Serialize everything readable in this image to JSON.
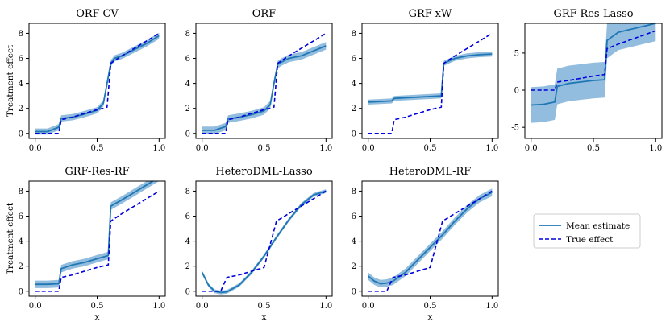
{
  "figure": {
    "legend": {
      "mean_label": "Mean estimate",
      "true_label": "True effect",
      "placement": "right, below top-right panel"
    },
    "colors": {
      "mean": "#1f77b4",
      "band": "#7fb1d8",
      "true": "#0000dd",
      "frame": "#000000"
    }
  },
  "chart_data": [
    {
      "type": "line",
      "title": "ORF-CV",
      "xlabel": "",
      "ylabel": "Treatment effect",
      "xlim": [
        -0.05,
        1.05
      ],
      "ylim": [
        -0.4,
        8.8
      ],
      "xticks": [
        0,
        0.5,
        1
      ],
      "xtick_labels": [
        "0.0",
        "0.5",
        "1.0"
      ],
      "yticks": [
        0,
        2,
        4,
        6,
        8
      ],
      "x": [
        0,
        0.1,
        0.19,
        0.21,
        0.3,
        0.4,
        0.5,
        0.55,
        0.58,
        0.61,
        0.64,
        0.7,
        0.8,
        0.9,
        1.0
      ],
      "series": [
        {
          "name": "Mean estimate",
          "values": [
            0.15,
            0.15,
            0.5,
            1.2,
            1.3,
            1.55,
            1.85,
            2.4,
            4.0,
            5.6,
            6.0,
            6.2,
            6.7,
            7.2,
            7.8
          ],
          "band": 0.25
        },
        {
          "name": "True effect",
          "values": [
            0,
            0,
            0,
            1.1,
            1.3,
            1.6,
            1.9,
            2.0,
            2.1,
            5.6,
            5.8,
            6.2,
            6.8,
            7.4,
            8.0
          ]
        }
      ]
    },
    {
      "type": "line",
      "title": "ORF",
      "xlabel": "",
      "ylabel": "",
      "xlim": [
        -0.05,
        1.05
      ],
      "ylim": [
        -0.4,
        8.8
      ],
      "xticks": [
        0,
        0.5,
        1
      ],
      "xtick_labels": [
        "0.0",
        "0.5",
        "1.0"
      ],
      "yticks": [
        0,
        2,
        4,
        6,
        8
      ],
      "x": [
        0,
        0.1,
        0.19,
        0.21,
        0.3,
        0.4,
        0.5,
        0.55,
        0.58,
        0.61,
        0.64,
        0.7,
        0.8,
        0.9,
        1.0
      ],
      "series": [
        {
          "name": "Mean estimate",
          "values": [
            0.25,
            0.25,
            0.55,
            1.15,
            1.3,
            1.5,
            1.8,
            2.3,
            4.0,
            5.5,
            5.7,
            6.0,
            6.2,
            6.6,
            7.0
          ],
          "band": 0.3
        },
        {
          "name": "True effect",
          "values": [
            0,
            0,
            0,
            1.1,
            1.3,
            1.6,
            1.9,
            2.0,
            2.1,
            5.6,
            5.8,
            6.2,
            6.8,
            7.4,
            8.0
          ]
        }
      ]
    },
    {
      "type": "line",
      "title": "GRF-xW",
      "xlabel": "",
      "ylabel": "",
      "xlim": [
        -0.05,
        1.05
      ],
      "ylim": [
        -0.4,
        8.8
      ],
      "xticks": [
        0,
        0.5,
        1
      ],
      "xtick_labels": [
        "0.0",
        "0.5",
        "1.0"
      ],
      "yticks": [
        0,
        2,
        4,
        6,
        8
      ],
      "x": [
        0,
        0.1,
        0.19,
        0.21,
        0.3,
        0.4,
        0.5,
        0.59,
        0.61,
        0.7,
        0.8,
        0.9,
        1.0
      ],
      "series": [
        {
          "name": "Mean estimate",
          "values": [
            2.5,
            2.55,
            2.6,
            2.8,
            2.85,
            2.9,
            2.95,
            3.0,
            5.6,
            6.0,
            6.2,
            6.3,
            6.35
          ],
          "band": 0.2
        },
        {
          "name": "True effect",
          "values": [
            0,
            0,
            0,
            1.1,
            1.3,
            1.6,
            1.9,
            2.1,
            5.6,
            6.2,
            6.8,
            7.4,
            8.0
          ]
        }
      ]
    },
    {
      "type": "line",
      "title": "GRF-Res-Lasso",
      "xlabel": "",
      "ylabel": "",
      "xlim": [
        -0.05,
        1.05
      ],
      "ylim": [
        -6.5,
        9.0
      ],
      "xticks": [
        0,
        0.5,
        1
      ],
      "xtick_labels": [
        "0.0",
        "0.5",
        "1.0"
      ],
      "yticks": [
        -5,
        0,
        5
      ],
      "x": [
        0,
        0.1,
        0.19,
        0.21,
        0.3,
        0.4,
        0.5,
        0.59,
        0.61,
        0.7,
        0.8,
        0.9,
        1.0
      ],
      "series": [
        {
          "name": "Mean estimate",
          "values": [
            -2.0,
            -1.9,
            -1.6,
            0.5,
            0.9,
            1.1,
            1.3,
            1.4,
            6.7,
            7.8,
            8.2,
            8.6,
            9.0
          ],
          "band": 2.4
        },
        {
          "name": "True effect",
          "values": [
            0,
            0,
            0,
            1.1,
            1.3,
            1.6,
            1.9,
            2.1,
            5.6,
            6.2,
            6.8,
            7.4,
            8.0
          ]
        }
      ]
    },
    {
      "type": "line",
      "title": "GRF-Res-RF",
      "xlabel": "x",
      "ylabel": "Treatment effect",
      "xlim": [
        -0.05,
        1.05
      ],
      "ylim": [
        -0.4,
        8.8
      ],
      "xticks": [
        0,
        0.5,
        1
      ],
      "xtick_labels": [
        "0.0",
        "0.5",
        "1.0"
      ],
      "yticks": [
        0,
        2,
        4,
        6,
        8
      ],
      "x": [
        0,
        0.1,
        0.19,
        0.21,
        0.3,
        0.4,
        0.5,
        0.59,
        0.61,
        0.7,
        0.8,
        0.9,
        1.0
      ],
      "series": [
        {
          "name": "Mean estimate",
          "values": [
            0.55,
            0.55,
            0.6,
            1.8,
            2.1,
            2.3,
            2.6,
            2.85,
            6.8,
            7.3,
            7.9,
            8.5,
            9.1
          ],
          "band": 0.3
        },
        {
          "name": "True effect",
          "values": [
            0,
            0,
            0,
            1.1,
            1.3,
            1.6,
            1.9,
            2.1,
            5.6,
            6.2,
            6.8,
            7.4,
            8.0
          ]
        }
      ]
    },
    {
      "type": "line",
      "title": "HeteroDML-Lasso",
      "xlabel": "x",
      "ylabel": "",
      "xlim": [
        -0.05,
        1.05
      ],
      "ylim": [
        -0.4,
        8.8
      ],
      "xticks": [
        0,
        0.5,
        1
      ],
      "xtick_labels": [
        "0.0",
        "0.5",
        "1.0"
      ],
      "yticks": [
        0,
        2,
        4,
        6,
        8
      ],
      "x": [
        0,
        0.05,
        0.1,
        0.15,
        0.2,
        0.3,
        0.4,
        0.5,
        0.6,
        0.7,
        0.8,
        0.9,
        1.0
      ],
      "series": [
        {
          "name": "Mean estimate",
          "values": [
            1.5,
            0.5,
            0.0,
            -0.1,
            -0.05,
            0.5,
            1.5,
            2.8,
            4.3,
            5.7,
            6.9,
            7.7,
            8.0
          ],
          "band": 0.15
        },
        {
          "name": "True effect",
          "values": [
            0,
            0,
            0,
            0,
            1.1,
            1.3,
            1.6,
            1.9,
            5.6,
            6.2,
            6.8,
            7.4,
            8.0
          ]
        }
      ]
    },
    {
      "type": "line",
      "title": "HeteroDML-RF",
      "xlabel": "x",
      "ylabel": "",
      "xlim": [
        -0.05,
        1.05
      ],
      "ylim": [
        -0.4,
        8.8
      ],
      "xticks": [
        0,
        0.5,
        1
      ],
      "xtick_labels": [
        "0.0",
        "0.5",
        "1.0"
      ],
      "yticks": [
        0,
        2,
        4,
        6,
        8
      ],
      "x": [
        0,
        0.05,
        0.1,
        0.15,
        0.2,
        0.3,
        0.4,
        0.5,
        0.6,
        0.7,
        0.8,
        0.9,
        1.0
      ],
      "series": [
        {
          "name": "Mean estimate",
          "values": [
            1.2,
            0.8,
            0.6,
            0.65,
            0.8,
            1.5,
            2.5,
            3.5,
            4.5,
            5.6,
            6.6,
            7.4,
            7.9
          ],
          "band": 0.3
        },
        {
          "name": "True effect",
          "values": [
            0,
            0,
            0,
            0,
            1.1,
            1.3,
            1.6,
            1.9,
            5.6,
            6.2,
            6.8,
            7.4,
            8.0
          ]
        }
      ]
    }
  ]
}
